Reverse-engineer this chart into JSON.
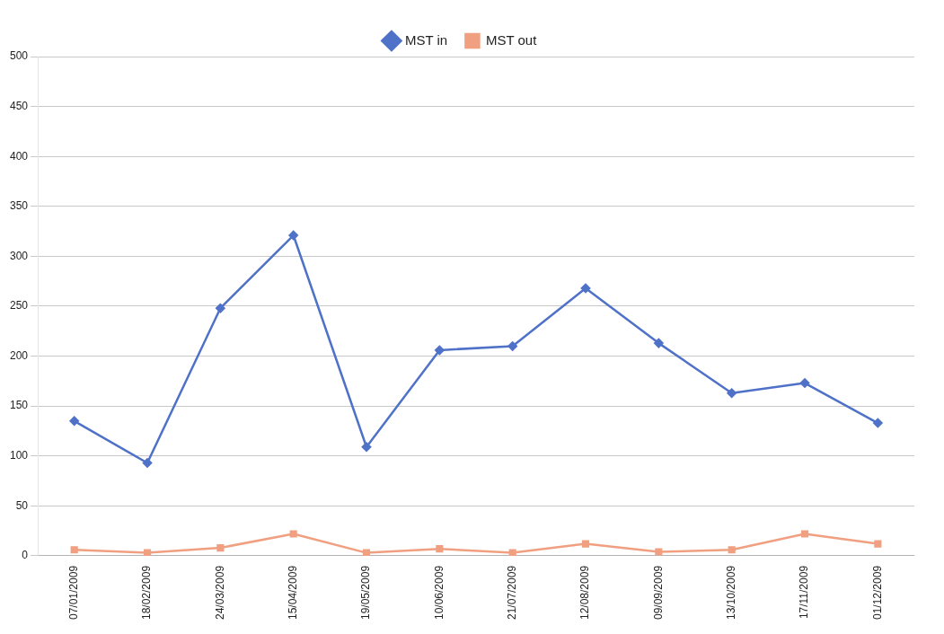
{
  "chart_data": {
    "type": "line",
    "categories": [
      "07/01/2009",
      "18/02/2009",
      "24/03/2009",
      "15/04/2009",
      "19/05/2009",
      "10/06/2009",
      "21/07/2009",
      "12/08/2009",
      "09/09/2009",
      "13/10/2009",
      "17/11/2009",
      "01/12/2009"
    ],
    "series": [
      {
        "name": "MST in",
        "color": "#4f72c8",
        "marker": "diamond",
        "values": [
          135,
          93,
          248,
          321,
          109,
          206,
          210,
          268,
          213,
          163,
          173,
          133
        ]
      },
      {
        "name": "MST out",
        "color": "#f0a080",
        "marker": "square",
        "values": [
          6,
          3,
          8,
          22,
          3,
          7,
          3,
          12,
          4,
          6,
          22,
          12
        ]
      }
    ],
    "ylim": [
      0,
      500
    ],
    "yticks": [
      0,
      50,
      100,
      150,
      200,
      250,
      300,
      350,
      400,
      450,
      500
    ],
    "grid": "y",
    "legend": "top",
    "line_style": "solid"
  }
}
